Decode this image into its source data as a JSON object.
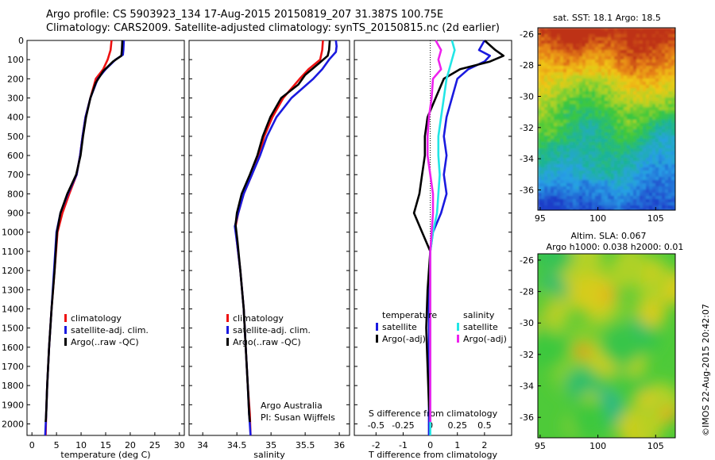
{
  "header": {
    "title_line1": "Argo profile: CS 5903923_134 17-Aug-2015 20150819_207 31.387S 100.75E",
    "title_line2": "Climatology: CARS2009. Satellite-adjusted climatology: synTS_20150815.nc (2d earlier)"
  },
  "colors": {
    "climatology": "#ee1111",
    "satellite": "#1a1adf",
    "argo": "#000000",
    "sat_salinity": "#22e6e6",
    "argo_salinity": "#ee22ee"
  },
  "chart_data": [
    {
      "type": "line",
      "xlabel": "temperature (deg C)",
      "xlim": [
        -1,
        31
      ],
      "xticks": [
        0,
        5,
        10,
        15,
        20,
        25,
        30
      ],
      "ylim": [
        0,
        2060
      ],
      "yticks": [
        0,
        100,
        200,
        300,
        400,
        500,
        600,
        700,
        800,
        900,
        1000,
        1100,
        1200,
        1300,
        1400,
        1500,
        1600,
        1700,
        1800,
        1900,
        2000
      ],
      "y_reversed": true,
      "legend": [
        "climatology",
        "satellite-adj. clim.",
        "Argo(..raw -QC)"
      ],
      "series": [
        {
          "name": "climatology",
          "color_key": "climatology",
          "points": [
            [
              16.2,
              0
            ],
            [
              16.0,
              50
            ],
            [
              15.4,
              100
            ],
            [
              14.5,
              150
            ],
            [
              13.0,
              200
            ],
            [
              11.9,
              300
            ],
            [
              10.9,
              400
            ],
            [
              10.3,
              500
            ],
            [
              9.8,
              600
            ],
            [
              9.1,
              700
            ],
            [
              7.6,
              800
            ],
            [
              6.2,
              900
            ],
            [
              5.2,
              1000
            ],
            [
              4.6,
              1200
            ],
            [
              4.0,
              1400
            ],
            [
              3.5,
              1600
            ],
            [
              3.1,
              1800
            ],
            [
              2.9,
              1950
            ],
            [
              2.8,
              2060
            ]
          ]
        },
        {
          "name": "satellite-adj. clim.",
          "color_key": "satellite",
          "points": [
            [
              18.7,
              0
            ],
            [
              18.6,
              50
            ],
            [
              18.5,
              75
            ],
            [
              17.0,
              100
            ],
            [
              15.0,
              150
            ],
            [
              13.4,
              200
            ],
            [
              11.9,
              300
            ],
            [
              10.9,
              400
            ],
            [
              10.3,
              500
            ],
            [
              9.8,
              600
            ],
            [
              9.1,
              700
            ],
            [
              7.3,
              800
            ],
            [
              5.8,
              900
            ],
            [
              5.0,
              1000
            ],
            [
              4.5,
              1200
            ],
            [
              4.0,
              1400
            ],
            [
              3.5,
              1600
            ],
            [
              3.1,
              1800
            ],
            [
              2.9,
              1950
            ],
            [
              2.7,
              2060
            ]
          ]
        },
        {
          "name": "Argo(..raw -QC)",
          "color_key": "argo",
          "points": [
            [
              18.4,
              0
            ],
            [
              18.3,
              50
            ],
            [
              18.2,
              80
            ],
            [
              16.5,
              110
            ],
            [
              14.5,
              160
            ],
            [
              13.0,
              220
            ],
            [
              11.9,
              300
            ],
            [
              11.0,
              400
            ],
            [
              10.4,
              500
            ],
            [
              9.9,
              600
            ],
            [
              9.0,
              700
            ],
            [
              7.2,
              800
            ],
            [
              5.8,
              900
            ],
            [
              5.1,
              1000
            ],
            [
              4.6,
              1200
            ],
            [
              4.0,
              1400
            ],
            [
              3.5,
              1600
            ],
            [
              3.1,
              1800
            ],
            [
              2.9,
              1950
            ],
            [
              2.8,
              1990
            ]
          ]
        }
      ]
    },
    {
      "type": "line",
      "xlabel": "salinity",
      "xlim": [
        33.8,
        36.15
      ],
      "xticks": [
        34,
        34.5,
        35,
        35.5,
        36
      ],
      "ylim": [
        0,
        2060
      ],
      "y_reversed": true,
      "legend": [
        "climatology",
        "satellite-adj. clim.",
        "Argo(..raw -QC)"
      ],
      "annotation": [
        "Argo Australia",
        "PI: Susan Wijffels"
      ],
      "series": [
        {
          "name": "climatology",
          "color_key": "climatology",
          "points": [
            [
              35.76,
              0
            ],
            [
              35.75,
              50
            ],
            [
              35.72,
              100
            ],
            [
              35.55,
              150
            ],
            [
              35.42,
              200
            ],
            [
              35.18,
              300
            ],
            [
              35.02,
              400
            ],
            [
              34.9,
              500
            ],
            [
              34.83,
              600
            ],
            [
              34.72,
              700
            ],
            [
              34.6,
              800
            ],
            [
              34.52,
              900
            ],
            [
              34.48,
              970
            ],
            [
              34.5,
              1050
            ],
            [
              34.55,
              1200
            ],
            [
              34.6,
              1400
            ],
            [
              34.63,
              1600
            ],
            [
              34.66,
              1800
            ],
            [
              34.69,
              1950
            ],
            [
              34.7,
              2060
            ]
          ]
        },
        {
          "name": "satellite-adj. clim.",
          "color_key": "satellite",
          "points": [
            [
              35.95,
              0
            ],
            [
              35.96,
              30
            ],
            [
              35.95,
              60
            ],
            [
              35.85,
              100
            ],
            [
              35.75,
              150
            ],
            [
              35.62,
              200
            ],
            [
              35.3,
              300
            ],
            [
              35.08,
              400
            ],
            [
              34.94,
              500
            ],
            [
              34.84,
              600
            ],
            [
              34.72,
              700
            ],
            [
              34.6,
              800
            ],
            [
              34.52,
              900
            ],
            [
              34.47,
              970
            ],
            [
              34.5,
              1050
            ],
            [
              34.55,
              1200
            ],
            [
              34.6,
              1400
            ],
            [
              34.63,
              1600
            ],
            [
              34.66,
              1800
            ],
            [
              34.68,
              1950
            ],
            [
              34.7,
              2060
            ]
          ]
        },
        {
          "name": "Argo(..raw -QC)",
          "color_key": "argo",
          "points": [
            [
              35.86,
              0
            ],
            [
              35.85,
              50
            ],
            [
              35.83,
              80
            ],
            [
              35.7,
              120
            ],
            [
              35.5,
              180
            ],
            [
              35.4,
              230
            ],
            [
              35.15,
              300
            ],
            [
              34.99,
              400
            ],
            [
              34.88,
              500
            ],
            [
              34.8,
              600
            ],
            [
              34.69,
              700
            ],
            [
              34.57,
              800
            ],
            [
              34.5,
              900
            ],
            [
              34.48,
              960
            ],
            [
              34.51,
              1050
            ],
            [
              34.55,
              1200
            ],
            [
              34.6,
              1400
            ],
            [
              34.63,
              1600
            ],
            [
              34.66,
              1800
            ],
            [
              34.68,
              1950
            ],
            [
              34.69,
              1990
            ]
          ]
        }
      ]
    },
    {
      "type": "line",
      "xlabel": "T difference from climatology",
      "top_label": "S difference from climatology",
      "xlim": [
        -2.8,
        3.0
      ],
      "xticks": [
        -2,
        -1,
        0,
        1,
        2
      ],
      "top_xticks": [
        "-0.5",
        "-0.25",
        "0",
        "0.25",
        "0.5"
      ],
      "top_xtick_values": [
        -2,
        -1,
        0,
        1,
        2
      ],
      "ylim": [
        0,
        2060
      ],
      "y_reversed": true,
      "legend_temperature": {
        "heading": "temperature",
        "items": [
          "satellite",
          "Argo(-adj)"
        ]
      },
      "legend_salinity": {
        "heading": "salinity",
        "items": [
          "satellite",
          "Argo(-adj)"
        ]
      },
      "series": [
        {
          "name": "satellite",
          "color_key": "satellite",
          "points": [
            [
              2.0,
              0
            ],
            [
              1.8,
              50
            ],
            [
              2.2,
              80
            ],
            [
              2.0,
              110
            ],
            [
              1.4,
              150
            ],
            [
              1.0,
              200
            ],
            [
              0.8,
              300
            ],
            [
              0.6,
              400
            ],
            [
              0.5,
              500
            ],
            [
              0.6,
              600
            ],
            [
              0.5,
              700
            ],
            [
              0.6,
              800
            ],
            [
              0.4,
              900
            ],
            [
              0.1,
              1000
            ],
            [
              0,
              1100
            ],
            [
              -0.05,
              1300
            ],
            [
              -0.05,
              1500
            ],
            [
              -0.05,
              1700
            ],
            [
              -0.05,
              1900
            ],
            [
              -0.05,
              2060
            ]
          ]
        },
        {
          "name": "Argo(-adj)",
          "color_key": "argo",
          "points": [
            [
              2.0,
              0
            ],
            [
              2.4,
              50
            ],
            [
              2.7,
              80
            ],
            [
              2.2,
              110
            ],
            [
              1.1,
              150
            ],
            [
              0.5,
              200
            ],
            [
              0.2,
              300
            ],
            [
              -0.1,
              400
            ],
            [
              -0.2,
              500
            ],
            [
              -0.2,
              600
            ],
            [
              -0.3,
              700
            ],
            [
              -0.4,
              800
            ],
            [
              -0.6,
              900
            ],
            [
              -0.3,
              1000
            ],
            [
              0,
              1100
            ],
            [
              -0.1,
              1300
            ],
            [
              -0.15,
              1500
            ],
            [
              -0.1,
              1700
            ],
            [
              -0.05,
              1900
            ],
            [
              0,
              1990
            ]
          ]
        },
        {
          "name": "satellite",
          "color_key": "sat_salinity",
          "points": [
            [
              0.8,
              0
            ],
            [
              0.9,
              50
            ],
            [
              0.8,
              100
            ],
            [
              0.7,
              150
            ],
            [
              0.6,
              200
            ],
            [
              0.5,
              300
            ],
            [
              0.4,
              400
            ],
            [
              0.3,
              500
            ],
            [
              0.3,
              600
            ],
            [
              0.35,
              700
            ],
            [
              0.3,
              800
            ],
            [
              0.25,
              900
            ],
            [
              0.1,
              1000
            ],
            [
              0,
              1100
            ],
            [
              0,
              1300
            ],
            [
              0,
              1600
            ],
            [
              0,
              2060
            ]
          ]
        },
        {
          "name": "Argo(-adj)",
          "color_key": "argo_salinity",
          "points": [
            [
              0.2,
              0
            ],
            [
              0.4,
              50
            ],
            [
              0.3,
              100
            ],
            [
              0.4,
              150
            ],
            [
              0.1,
              200
            ],
            [
              0.05,
              300
            ],
            [
              -0.05,
              400
            ],
            [
              -0.1,
              500
            ],
            [
              -0.1,
              600
            ],
            [
              0,
              700
            ],
            [
              0.1,
              800
            ],
            [
              0.1,
              900
            ],
            [
              0.05,
              1000
            ],
            [
              0,
              1100
            ],
            [
              0,
              1300
            ],
            [
              0,
              1500
            ],
            [
              0,
              1700
            ],
            [
              0,
              1900
            ],
            [
              0,
              1990
            ]
          ]
        }
      ]
    },
    {
      "type": "heatmap",
      "title": "sat. SST: 18.1  Argo: 18.5",
      "xticks": [
        95,
        100,
        105
      ],
      "yticks": [
        -26,
        -28,
        -30,
        -32,
        -34,
        -36
      ],
      "xlim": [
        94.8,
        106.7
      ],
      "ylim": [
        -37.3,
        -25.6
      ]
    },
    {
      "type": "heatmap",
      "title_line1": "Altim. SLA: 0.067",
      "title_line2": "Argo h1000: 0.038 h2000: 0.01",
      "xticks": [
        95,
        100,
        105
      ],
      "yticks": [
        -26,
        -28,
        -30,
        -32,
        -34,
        -36
      ],
      "xlim": [
        94.8,
        106.7
      ],
      "ylim": [
        -37.3,
        -25.6
      ]
    }
  ],
  "credit": "©IMOS 22-Aug-2015 20:42:07"
}
